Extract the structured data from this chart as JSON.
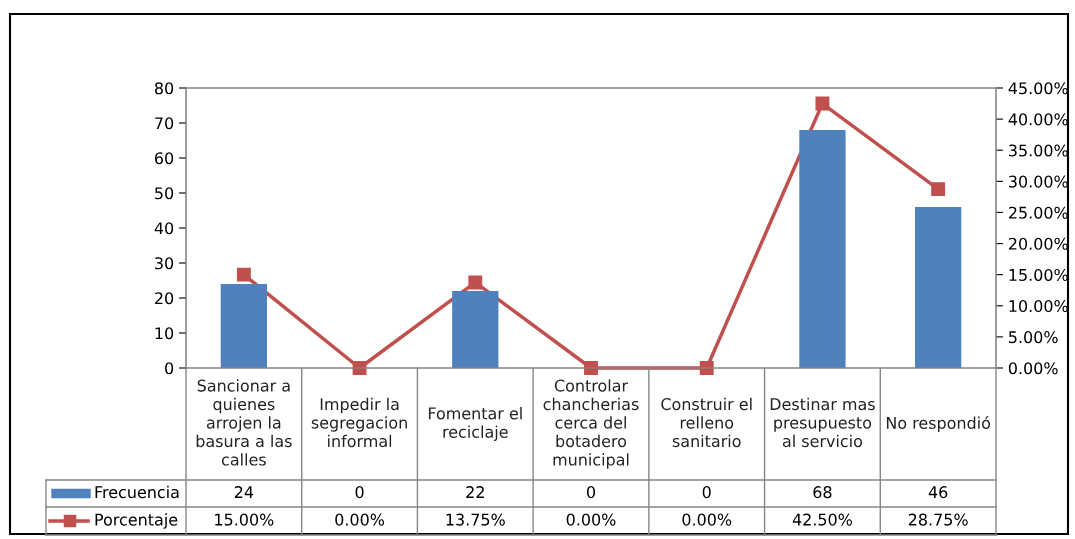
{
  "chart_data": {
    "type": "bar",
    "categories": [
      "Sancionar a quienes arrojen la basura a las calles",
      "Impedir la segregacion informal",
      "Fomentar el reciclaje",
      "Controlar chancherias cerca del botadero municipal",
      "Construir el relleno sanitario",
      "Destinar mas presupuesto al servicio",
      "No respondió"
    ],
    "series": [
      {
        "name": "Frecuencia",
        "color": "#4f81bd",
        "values": [
          24,
          0,
          22,
          0,
          0,
          68,
          46
        ],
        "value_labels": [
          "24",
          "0",
          "22",
          "0",
          "0",
          "68",
          "46"
        ]
      },
      {
        "name": "Porcentaje",
        "type": "line",
        "axis": "y2",
        "color": "#c0504d",
        "marker": "square",
        "values": [
          15.0,
          0.0,
          13.75,
          0.0,
          0.0,
          42.5,
          28.75
        ],
        "value_labels": [
          "15.00%",
          "0.00%",
          "13.75%",
          "0.00%",
          "0.00%",
          "42.50%",
          "28.75%"
        ]
      }
    ],
    "ylim": [
      0,
      80
    ],
    "yticks": [
      0,
      10,
      20,
      30,
      40,
      50,
      60,
      70,
      80
    ],
    "y2lim": [
      0,
      45
    ],
    "y2ticks": [
      {
        "value": 0,
        "label": "0.00%"
      },
      {
        "value": 5,
        "label": "5.00%"
      },
      {
        "value": 10,
        "label": "10.00%"
      },
      {
        "value": 15,
        "label": "15.00%"
      },
      {
        "value": 20,
        "label": "20.00%"
      },
      {
        "value": 25,
        "label": "25.00%"
      },
      {
        "value": 30,
        "label": "30.00%"
      },
      {
        "value": 35,
        "label": "35.00%"
      },
      {
        "value": 40,
        "label": "40.00%"
      },
      {
        "value": 45,
        "label": "45.00%"
      }
    ],
    "grid": false,
    "legend": "bottom"
  }
}
